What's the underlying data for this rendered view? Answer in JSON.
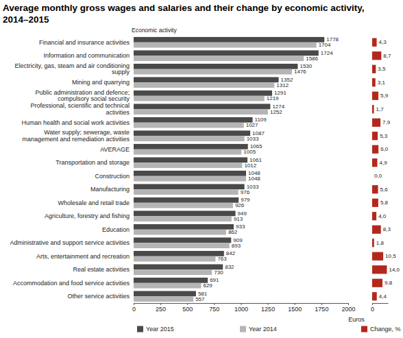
{
  "chart_data": [
    {
      "type": "bar",
      "title": "Average monthly gross wages and salaries and their change by economic activity, 2014–2015",
      "ylabel": "Economic activity",
      "xlabel": "Euros",
      "orientation": "horizontal",
      "categories": [
        "Financial and insurance activities",
        "Information and communication",
        "Electricity, gas, steam and air conditioning supply",
        "Mining and quarrying",
        "Public administration and defence; compulsory social security",
        "Professional, scientific and technical activities",
        "Human health and social work activities",
        "Water supply; sewerage, waste management and remediation activities",
        "AVERAGE",
        "Transportation and storage",
        "Construction",
        "Manufacturing",
        "Wholesale and retail trade",
        "Agriculture, forestry and fishing",
        "Education",
        "Administrative and support service activities",
        "Arts, entertainment and recreation",
        "Real estate activities",
        "Accommodation and food service activities",
        "Other service activities"
      ],
      "series": [
        {
          "name": "Year 2015",
          "color": "#4a4a4a",
          "values": [
            1778,
            1724,
            1530,
            1352,
            1291,
            1274,
            1109,
            1087,
            1065,
            1061,
            1048,
            1033,
            979,
            949,
            933,
            909,
            842,
            832,
            691,
            581
          ]
        },
        {
          "name": "Year 2014",
          "color": "#b5b5b5",
          "values": [
            1704,
            1586,
            1476,
            1312,
            1219,
            1252,
            1027,
            1033,
            1005,
            1012,
            1048,
            976,
            926,
            913,
            862,
            893,
            763,
            730,
            629,
            557
          ]
        }
      ],
      "xlim": [
        0,
        2000
      ],
      "xticks": [
        0,
        250,
        500,
        750,
        1000,
        1250,
        1500,
        1750,
        2000
      ],
      "grid": false,
      "legend": "bottom",
      "data_labels": true
    },
    {
      "type": "bar",
      "orientation": "horizontal",
      "categories": [
        null,
        null,
        null,
        null,
        null,
        null,
        null,
        null,
        null,
        null,
        null,
        null,
        null,
        null,
        null,
        null,
        null,
        null,
        null,
        null
      ],
      "series": [
        {
          "name": "Change, %",
          "color": "#b3281d",
          "values": [
            4.3,
            8.7,
            3.5,
            3.1,
            5.9,
            1.7,
            7.9,
            5.3,
            6.0,
            4.9,
            0.0,
            5.6,
            5.8,
            4.0,
            8.3,
            1.8,
            10.5,
            14.0,
            9.8,
            4.4
          ],
          "value_labels": [
            "4,3",
            "8,7",
            "3,5",
            "3,1",
            "5,9",
            "1,7",
            "7,9",
            "5,3",
            "6,0",
            "4,9",
            "0,0",
            "5,6",
            "5,8",
            "4,0",
            "8,3",
            "1,8",
            "10,5",
            "14,0",
            "9,8",
            "4,4"
          ]
        }
      ],
      "xlim": [
        0,
        15
      ],
      "xticks": [
        0
      ],
      "grid": false,
      "legend": "bottom",
      "data_labels": true
    }
  ]
}
